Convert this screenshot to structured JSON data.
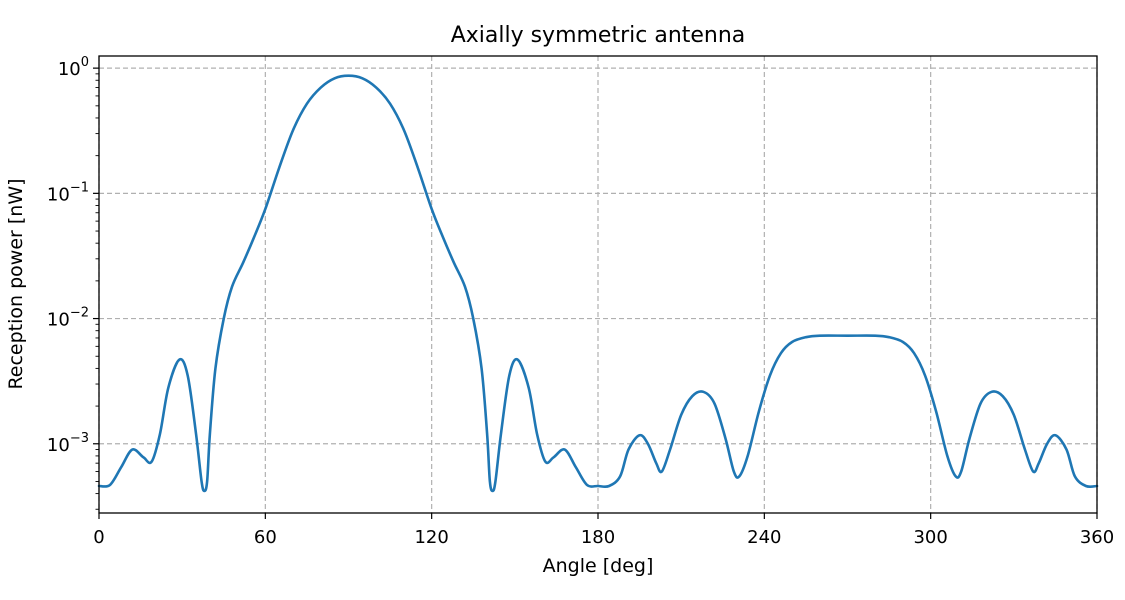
{
  "chart_data": {
    "type": "line",
    "title": "Axially symmetric antenna",
    "xlabel": "Angle [deg]",
    "ylabel": "Reception power [nW]",
    "xlim": [
      0,
      360
    ],
    "ylim": [
      0.00028,
      1.25
    ],
    "yscale": "log",
    "grid": true,
    "x_ticks": [
      0,
      60,
      120,
      180,
      240,
      300,
      360
    ],
    "y_ticks": [
      {
        "value": 0.001,
        "base": "10",
        "exp": "−3"
      },
      {
        "value": 0.01,
        "base": "10",
        "exp": "−2"
      },
      {
        "value": 0.1,
        "base": "10",
        "exp": "−1"
      },
      {
        "value": 1,
        "base": "10",
        "exp": "0"
      }
    ],
    "series": [
      {
        "color": "#1f77b4",
        "points": [
          [
            0,
            0.00046
          ],
          [
            4,
            0.00047
          ],
          [
            8,
            0.00065
          ],
          [
            12,
            0.0009
          ],
          [
            16,
            0.00078
          ],
          [
            19,
            0.00072
          ],
          [
            22,
            0.0012
          ],
          [
            25,
            0.0028
          ],
          [
            29,
            0.0047
          ],
          [
            32,
            0.0035
          ],
          [
            35,
            0.0012
          ],
          [
            37,
            0.0005
          ],
          [
            38,
            0.00042
          ],
          [
            39,
            0.0005
          ],
          [
            40,
            0.0012
          ],
          [
            42,
            0.004
          ],
          [
            45,
            0.01
          ],
          [
            48,
            0.018
          ],
          [
            52,
            0.028
          ],
          [
            56,
            0.045
          ],
          [
            60,
            0.075
          ],
          [
            65,
            0.16
          ],
          [
            70,
            0.32
          ],
          [
            75,
            0.52
          ],
          [
            80,
            0.7
          ],
          [
            85,
            0.83
          ],
          [
            90,
            0.87
          ],
          [
            95,
            0.83
          ],
          [
            100,
            0.7
          ],
          [
            105,
            0.52
          ],
          [
            110,
            0.32
          ],
          [
            115,
            0.16
          ],
          [
            120,
            0.075
          ],
          [
            124,
            0.045
          ],
          [
            128,
            0.028
          ],
          [
            132,
            0.018
          ],
          [
            135,
            0.01
          ],
          [
            138,
            0.004
          ],
          [
            140,
            0.0012
          ],
          [
            141,
            0.0005
          ],
          [
            142,
            0.00042
          ],
          [
            143,
            0.0005
          ],
          [
            145,
            0.0012
          ],
          [
            148,
            0.0035
          ],
          [
            151,
            0.0047
          ],
          [
            155,
            0.0028
          ],
          [
            158,
            0.0012
          ],
          [
            161,
            0.00072
          ],
          [
            164,
            0.00078
          ],
          [
            168,
            0.0009
          ],
          [
            172,
            0.00065
          ],
          [
            176,
            0.00047
          ],
          [
            180,
            0.00046
          ],
          [
            184,
            0.00046
          ],
          [
            188,
            0.00055
          ],
          [
            191,
            0.0009
          ],
          [
            195,
            0.00117
          ],
          [
            198,
            0.001
          ],
          [
            201,
            0.0007
          ],
          [
            203,
            0.0006
          ],
          [
            206,
            0.0009
          ],
          [
            210,
            0.0017
          ],
          [
            214,
            0.0024
          ],
          [
            218,
            0.0026
          ],
          [
            222,
            0.0021
          ],
          [
            226,
            0.0011
          ],
          [
            229,
            0.0006
          ],
          [
            231,
            0.00055
          ],
          [
            234,
            0.0008
          ],
          [
            238,
            0.0018
          ],
          [
            242,
            0.0035
          ],
          [
            246,
            0.0053
          ],
          [
            250,
            0.0065
          ],
          [
            255,
            0.0071
          ],
          [
            260,
            0.0073
          ],
          [
            270,
            0.0073
          ],
          [
            280,
            0.0073
          ],
          [
            285,
            0.0071
          ],
          [
            290,
            0.0065
          ],
          [
            294,
            0.0053
          ],
          [
            298,
            0.0035
          ],
          [
            302,
            0.0018
          ],
          [
            306,
            0.0008
          ],
          [
            309,
            0.00055
          ],
          [
            311,
            0.0006
          ],
          [
            314,
            0.0011
          ],
          [
            318,
            0.0021
          ],
          [
            322,
            0.0026
          ],
          [
            326,
            0.0024
          ],
          [
            330,
            0.0017
          ],
          [
            334,
            0.0009
          ],
          [
            337,
            0.0006
          ],
          [
            339,
            0.0007
          ],
          [
            342,
            0.001
          ],
          [
            345,
            0.00117
          ],
          [
            349,
            0.0009
          ],
          [
            352,
            0.00055
          ],
          [
            356,
            0.00046
          ],
          [
            360,
            0.00046
          ]
        ]
      }
    ]
  }
}
